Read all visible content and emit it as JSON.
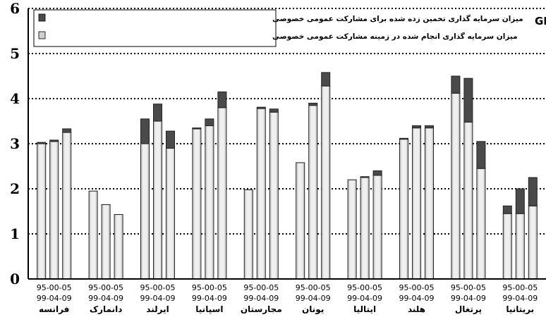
{
  "chart_data": {
    "type": "bar",
    "stacked": true,
    "unit_label": "درصد از GDP",
    "ylim": [
      0,
      6
    ],
    "yticks": [
      0,
      1,
      2,
      3,
      4,
      5,
      6
    ],
    "grid": "dotted-horizontal",
    "legend_position": "top-left",
    "period_labels": [
      "95-00-05",
      "99-04-09"
    ],
    "countries": [
      "فرانسه",
      "دانمارک",
      "ایرلند",
      "اسپانیا",
      "مجارستان",
      "یونان",
      "ایتالیا",
      "هلند",
      "پرتغال",
      "بریتانیا"
    ],
    "series": [
      {
        "name": "میزان سرمایه گذاری انجام شده در زمینه مشارکت عمومی خصوصی",
        "color": "#d0d0d0",
        "values": [
          [
            3.0,
            3.05,
            3.25
          ],
          [
            1.95,
            1.65,
            1.43
          ],
          [
            3.0,
            3.5,
            2.9
          ],
          [
            3.33,
            3.4,
            3.8
          ],
          [
            1.98,
            3.78,
            3.7
          ],
          [
            2.58,
            3.85,
            4.28
          ],
          [
            2.2,
            2.25,
            2.3
          ],
          [
            3.1,
            3.35,
            3.35
          ],
          [
            4.12,
            3.48,
            2.45
          ],
          [
            1.45,
            1.45,
            1.62
          ]
        ]
      },
      {
        "name": "میزان سرمایه گذاری تخمین زده شده برای مشارکت عمومی خصوصی",
        "color": "#4a4a4a",
        "values": [
          [
            0.03,
            0.03,
            0.08
          ],
          [
            0.0,
            0.0,
            0.0
          ],
          [
            0.55,
            0.38,
            0.38
          ],
          [
            0.02,
            0.15,
            0.35
          ],
          [
            0.0,
            0.03,
            0.07
          ],
          [
            0.0,
            0.05,
            0.3
          ],
          [
            0.0,
            0.02,
            0.1
          ],
          [
            0.02,
            0.05,
            0.05
          ],
          [
            0.38,
            0.97,
            0.6
          ],
          [
            0.17,
            0.55,
            0.63
          ]
        ]
      }
    ]
  }
}
